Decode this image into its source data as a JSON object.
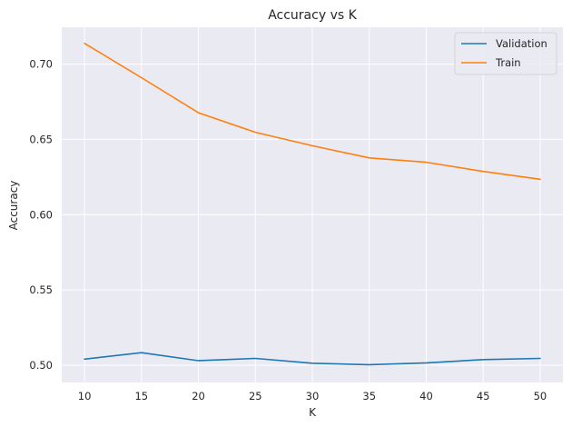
{
  "chart_data": {
    "type": "line",
    "title": "Accuracy vs K",
    "xlabel": "K",
    "ylabel": "Accuracy",
    "x": [
      10,
      15,
      20,
      25,
      30,
      35,
      40,
      45,
      50
    ],
    "xticks": [
      10,
      15,
      20,
      25,
      30,
      35,
      40,
      45,
      50
    ],
    "yticks": [
      "0.50",
      "0.55",
      "0.60",
      "0.65",
      "0.70"
    ],
    "xlim": [
      8,
      52
    ],
    "ylim": [
      0.4885,
      0.7245
    ],
    "grid": true,
    "legend_position": "top-right",
    "series": [
      {
        "name": "Validation",
        "color": "#1f77b4",
        "values": [
          0.504,
          0.5083,
          0.503,
          0.5045,
          0.5013,
          0.5003,
          0.5015,
          0.5037,
          0.5045
        ]
      },
      {
        "name": "Train",
        "color": "#ff7f0e",
        "values": [
          0.7138,
          0.691,
          0.6677,
          0.6547,
          0.6458,
          0.6377,
          0.6348,
          0.6287,
          0.6235
        ]
      }
    ]
  }
}
